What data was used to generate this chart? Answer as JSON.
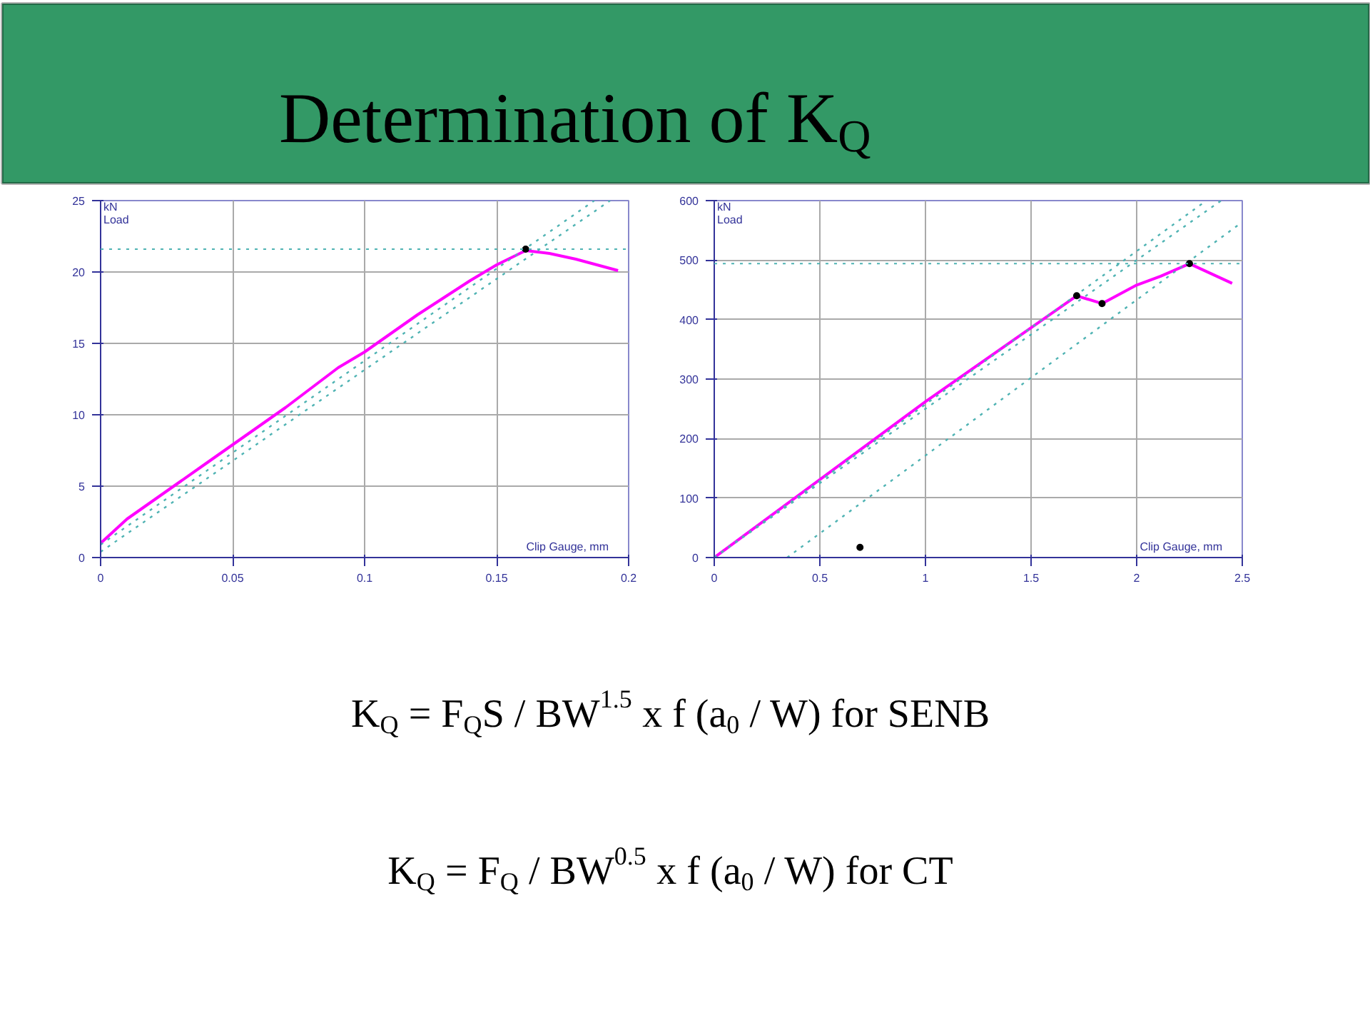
{
  "chart_data": [
    {
      "type": "other",
      "title": "Determination of K$_{Q}$",
      "annotations": [
        "K$_{Q}$ = F$_{Q}$S / BW$^{1.5}$ x f (a$_{0}$ / W)    for SENB",
        "K$_{Q}$ = F$_{Q}$ / BW$^{0.5}$ x f (a$_{0}$ / W)    for CT"
      ]
    },
    {
      "type": "line",
      "xlabel": "Clip Gauge, mm",
      "ylabel": "Load",
      "annotations": [
        "kN"
      ],
      "xlim": [
        0,
        0.2
      ],
      "ylim": [
        0,
        25
      ],
      "xticks": [
        0,
        0.05,
        0.1,
        0.15,
        0.2
      ],
      "yticks": [
        0,
        5,
        10,
        15,
        20,
        25
      ],
      "grid": true,
      "ref_lines": [
        {
          "axis": "y",
          "value": 21.6,
          "color": "#4fb3b3",
          "line_style": "dotted"
        }
      ],
      "series": [
        {
          "type": "line",
          "color": "#ff00ff",
          "line_style": "solid",
          "x": [
            0,
            0.01,
            0.02,
            0.03,
            0.04,
            0.05,
            0.06,
            0.07,
            0.08,
            0.09,
            0.1,
            0.11,
            0.12,
            0.13,
            0.14,
            0.15,
            0.161,
            0.17,
            0.18,
            0.196
          ],
          "values": [
            1.0,
            2.7,
            4.0,
            5.3,
            6.6,
            7.9,
            9.2,
            10.5,
            11.9,
            13.3,
            14.4,
            15.7,
            17.0,
            18.2,
            19.4,
            20.5,
            21.5,
            21.3,
            20.9,
            20.1
          ]
        },
        {
          "type": "line",
          "color": "#4fb3b3",
          "line_style": "dotted",
          "x": [
            0,
            0.187
          ],
          "values": [
            0.9,
            25
          ]
        },
        {
          "type": "line",
          "color": "#4fb3b3",
          "line_style": "dotted",
          "x": [
            0,
            0.193
          ],
          "values": [
            0.4,
            25
          ]
        },
        {
          "type": "scatter",
          "color": "#000000",
          "marker": "circle",
          "x": [
            0.161
          ],
          "values": [
            21.6
          ]
        }
      ]
    },
    {
      "type": "line",
      "xlabel": "Clip Gauge, mm",
      "ylabel": "Load",
      "annotations": [
        "kN"
      ],
      "xlim": [
        0,
        2.5
      ],
      "ylim": [
        0,
        600
      ],
      "xticks": [
        0,
        0.5,
        1,
        1.5,
        2,
        2.5
      ],
      "yticks": [
        0,
        100,
        200,
        300,
        400,
        500,
        600
      ],
      "grid": true,
      "ref_lines": [
        {
          "axis": "y",
          "value": 494,
          "color": "#4fb3b3",
          "line_style": "dotted"
        }
      ],
      "series": [
        {
          "type": "line",
          "color": "#ff00ff",
          "line_style": "solid",
          "x": [
            0,
            1.0,
            1.716,
            1.836,
            2.0,
            2.114,
            2.25,
            2.452
          ],
          "values": [
            0,
            262,
            440,
            427,
            458,
            473,
            494,
            461
          ]
        },
        {
          "type": "line",
          "color": "#4fb3b3",
          "line_style": "dotted",
          "x": [
            0,
            2.33
          ],
          "values": [
            0,
            600
          ]
        },
        {
          "type": "line",
          "color": "#4fb3b3",
          "line_style": "dotted",
          "x": [
            0,
            2.4
          ],
          "values": [
            0,
            600
          ]
        },
        {
          "type": "line",
          "color": "#4fb3b3",
          "line_style": "dotted",
          "x": [
            0.345,
            2.5
          ],
          "values": [
            0,
            564
          ]
        },
        {
          "type": "scatter",
          "color": "#000000",
          "marker": "circle",
          "x": [
            1.716,
            1.836,
            2.25,
            0.69
          ],
          "values": [
            440,
            427,
            494,
            17
          ]
        }
      ]
    }
  ]
}
